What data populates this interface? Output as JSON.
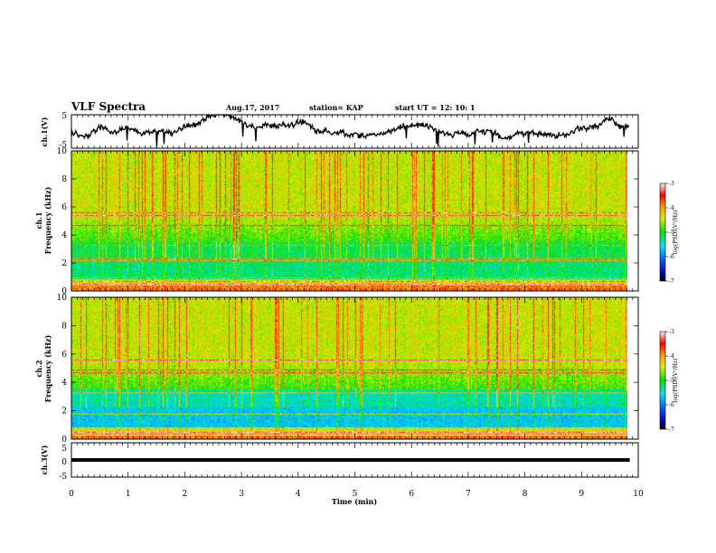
{
  "header": {
    "title": "VLF Spectra",
    "date": "Aug.17, 2017",
    "station": "station= KAP",
    "start": "start UT =  12: 10: 1"
  },
  "chart_data": [
    {
      "type": "line",
      "name": "ch1-waveform",
      "ylabel": "ch.1(V)",
      "ylim": [
        -5,
        5
      ],
      "yticks": [
        5,
        -5
      ],
      "xlim": [
        0,
        10
      ],
      "x_data_end": 9.85,
      "description_values": {
        "baseline": 0.3,
        "amplitude": 1.4
      }
    },
    {
      "type": "heatmap",
      "name": "ch1-spectrogram",
      "ylabel": "ch.1",
      "ylabel2": "Frequency (kHz)",
      "ylim": [
        0,
        10
      ],
      "yticks": [
        0,
        2,
        4,
        6,
        8,
        10
      ],
      "xlim": [
        0,
        10
      ],
      "x_data_end": 9.85,
      "colorbar": {
        "label": "log(PSD)(V²/Hz)",
        "min": -7,
        "max": -3,
        "ticks": [
          "-3",
          "-4",
          "-5",
          "-6",
          "-7"
        ]
      },
      "lines_khz": [
        0.5,
        0.7,
        1.0,
        2.2,
        2.3,
        3.3,
        4.7,
        5.4,
        5.6
      ]
    },
    {
      "type": "heatmap",
      "name": "ch2-spectrogram",
      "ylabel": "ch.2",
      "ylabel2": "Frequency (kHz)",
      "ylim": [
        0,
        10
      ],
      "yticks": [
        0,
        2,
        4,
        6,
        8,
        10
      ],
      "xlim": [
        0,
        10
      ],
      "x_data_end": 9.85,
      "colorbar": {
        "label": "log(PSD)(V²/Hz)",
        "min": -7,
        "max": -3,
        "ticks": [
          "-3",
          "-4",
          "-5",
          "-6",
          "-7"
        ]
      },
      "lines_khz": [
        0.3,
        0.5,
        1.8,
        3.3,
        4.7,
        4.9,
        5.6
      ]
    },
    {
      "type": "line",
      "name": "ch3-waveform",
      "ylabel": "ch.3(V)",
      "xlabel": "Time (min)",
      "ylim": [
        -5,
        5
      ],
      "yticks": [
        5,
        0,
        -5
      ],
      "xlim": [
        0,
        10
      ],
      "xticks": [
        0,
        1,
        2,
        3,
        4,
        5,
        6,
        7,
        8,
        9,
        10
      ],
      "x_data_end": 9.85,
      "constant_value": 0
    }
  ]
}
